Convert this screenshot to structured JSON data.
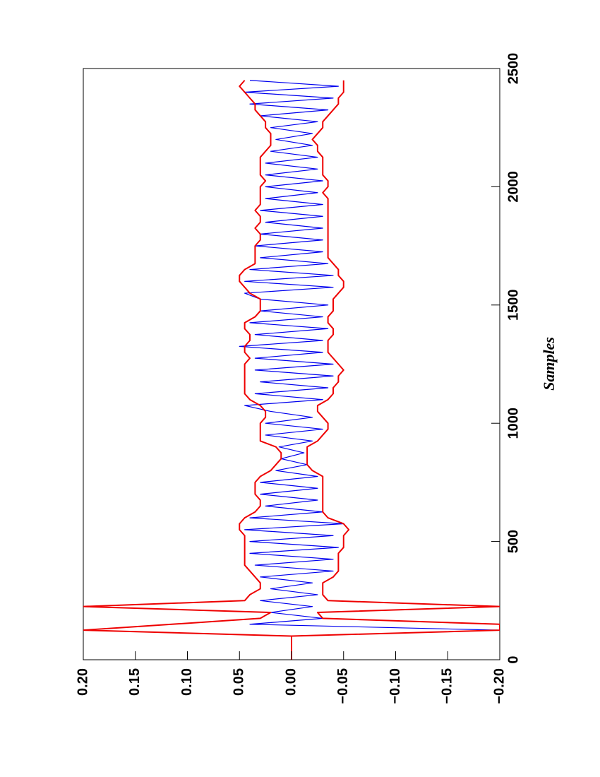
{
  "chart_data": {
    "type": "line",
    "xlabel": "Samples",
    "x": [
      0,
      25,
      50,
      75,
      100,
      125,
      150,
      175,
      200,
      225,
      250,
      275,
      300,
      325,
      350,
      375,
      400,
      425,
      450,
      475,
      500,
      525,
      550,
      575,
      600,
      625,
      650,
      675,
      700,
      725,
      750,
      775,
      800,
      825,
      850,
      875,
      900,
      925,
      950,
      975,
      1000,
      1025,
      1050,
      1075,
      1100,
      1125,
      1150,
      1175,
      1200,
      1225,
      1250,
      1275,
      1300,
      1325,
      1350,
      1375,
      1400,
      1425,
      1450,
      1475,
      1500,
      1525,
      1550,
      1575,
      1600,
      1625,
      1650,
      1675,
      1700,
      1725,
      1750,
      1775,
      1800,
      1825,
      1850,
      1875,
      1900,
      1925,
      1950,
      1975,
      2000,
      2025,
      2050,
      2075,
      2100,
      2125,
      2150,
      2175,
      2200,
      2225,
      2250,
      2275,
      2300,
      2325,
      2350,
      2375,
      2400,
      2425,
      2450
    ],
    "series": [
      {
        "color": "#0000ee",
        "values": [
          0,
          0,
          0,
          0,
          0,
          -0.2,
          0.04,
          -0.03,
          0.02,
          -0.02,
          0.03,
          -0.025,
          0.02,
          -0.02,
          0.03,
          -0.04,
          0.035,
          -0.04,
          0.04,
          -0.045,
          0.04,
          -0.04,
          0.045,
          -0.05,
          0.04,
          -0.03,
          0.025,
          -0.025,
          0.03,
          -0.025,
          0.03,
          -0.025,
          0.015,
          -0.015,
          0.01,
          -0.012,
          0.012,
          -0.02,
          0.025,
          -0.03,
          0.025,
          -0.02,
          0.02,
          0.045,
          -0.03,
          0.035,
          -0.035,
          0.03,
          -0.04,
          0.035,
          -0.04,
          0.035,
          -0.03,
          0.05,
          -0.03,
          0.035,
          -0.035,
          0.04,
          -0.03,
          0.03,
          -0.035,
          0.03,
          0.045,
          -0.04,
          0.045,
          -0.04,
          0.04,
          -0.035,
          0.03,
          -0.03,
          0.035,
          -0.03,
          0.03,
          -0.03,
          0.025,
          -0.03,
          0.03,
          -0.03,
          0.025,
          -0.025,
          0.025,
          -0.03,
          0.025,
          -0.025,
          0.025,
          -0.025,
          0.02,
          -0.02,
          0.015,
          -0.02,
          0.02,
          -0.025,
          0.03,
          -0.035,
          0.04,
          -0.04,
          0.045,
          -0.045,
          0.04
        ]
      },
      {
        "color": "#ee0000",
        "values": [
          0,
          0,
          0,
          0,
          0,
          0.2,
          0.115,
          0.03,
          0.02,
          0.2,
          0.045,
          0.04,
          0.03,
          0.03,
          0.035,
          0.04,
          0.045,
          0.045,
          0.045,
          0.045,
          0.045,
          0.045,
          0.05,
          0.05,
          0.045,
          0.035,
          0.03,
          0.03,
          0.035,
          0.035,
          0.035,
          0.03,
          0.02,
          0.015,
          0.01,
          0.01,
          0.015,
          0.03,
          0.03,
          0.03,
          0.03,
          0.025,
          0.025,
          0.03,
          0.04,
          0.045,
          0.045,
          0.045,
          0.045,
          0.045,
          0.045,
          0.04,
          0.045,
          0.045,
          0.04,
          0.04,
          0.045,
          0.045,
          0.035,
          0.03,
          0.03,
          0.03,
          0.04,
          0.045,
          0.05,
          0.05,
          0.045,
          0.035,
          0.035,
          0.035,
          0.035,
          0.03,
          0.03,
          0.035,
          0.03,
          0.03,
          0.035,
          0.03,
          0.03,
          0.03,
          0.03,
          0.025,
          0.03,
          0.03,
          0.03,
          0.03,
          0.025,
          0.02,
          0.02,
          0.02,
          0.025,
          0.025,
          0.03,
          0.035,
          0.035,
          0.04,
          0.045,
          0.05,
          0.045
        ]
      },
      {
        "color": "#ee0000",
        "values": [
          0,
          0,
          0,
          0,
          0,
          -0.2,
          -0.2,
          -0.03,
          -0.025,
          -0.2,
          -0.035,
          -0.03,
          -0.03,
          -0.03,
          -0.04,
          -0.045,
          -0.045,
          -0.045,
          -0.045,
          -0.05,
          -0.05,
          -0.05,
          -0.055,
          -0.05,
          -0.035,
          -0.03,
          -0.03,
          -0.03,
          -0.03,
          -0.03,
          -0.03,
          -0.03,
          -0.02,
          -0.015,
          -0.015,
          -0.015,
          -0.015,
          -0.025,
          -0.03,
          -0.035,
          -0.035,
          -0.03,
          -0.025,
          -0.025,
          -0.035,
          -0.04,
          -0.04,
          -0.045,
          -0.045,
          -0.05,
          -0.045,
          -0.04,
          -0.035,
          -0.035,
          -0.035,
          -0.04,
          -0.04,
          -0.035,
          -0.035,
          -0.04,
          -0.04,
          -0.04,
          -0.045,
          -0.05,
          -0.05,
          -0.045,
          -0.045,
          -0.04,
          -0.035,
          -0.035,
          -0.035,
          -0.035,
          -0.035,
          -0.035,
          -0.035,
          -0.035,
          -0.035,
          -0.035,
          -0.035,
          -0.03,
          -0.035,
          -0.035,
          -0.03,
          -0.03,
          -0.03,
          -0.03,
          -0.025,
          -0.025,
          -0.02,
          -0.025,
          -0.03,
          -0.03,
          -0.035,
          -0.04,
          -0.045,
          -0.045,
          -0.05,
          -0.05,
          -0.05
        ]
      }
    ],
    "xlim": [
      0,
      2500
    ],
    "xticks": [
      0,
      500,
      1000,
      1500,
      2000,
      2500
    ],
    "ylim": [
      -0.2,
      0.2
    ],
    "yticks": [
      {
        "value": -0.2,
        "label": "−0.20"
      },
      {
        "value": -0.15,
        "label": "−0.15"
      },
      {
        "value": -0.1,
        "label": "−0.10"
      },
      {
        "value": -0.05,
        "label": "−0.05"
      },
      {
        "value": 0,
        "label": "0.00"
      },
      {
        "value": 0.05,
        "label": "0.05"
      },
      {
        "value": 0.1,
        "label": "0.10"
      },
      {
        "value": 0.15,
        "label": "0.15"
      },
      {
        "value": 0.2,
        "label": "0.20"
      }
    ]
  }
}
